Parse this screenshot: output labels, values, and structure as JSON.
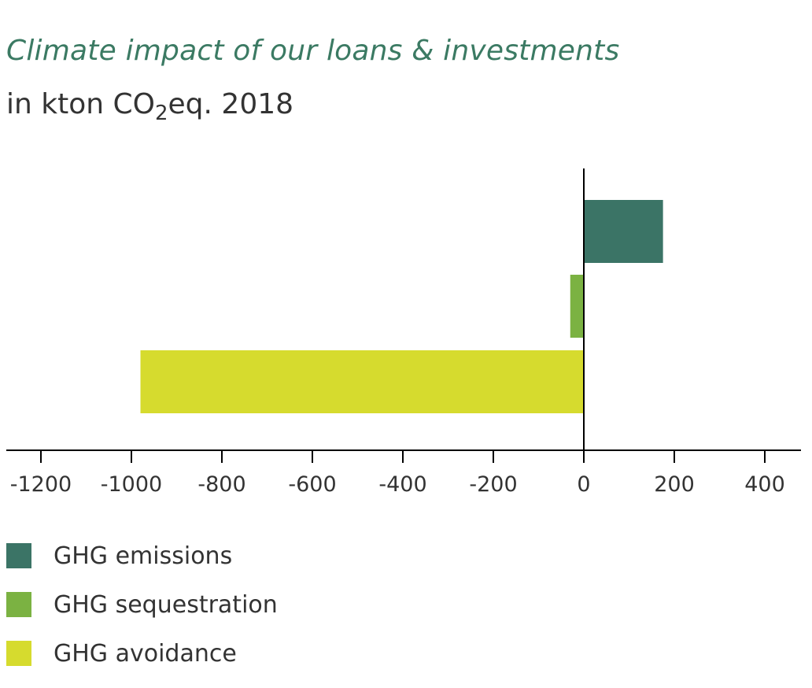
{
  "chart_data": {
    "type": "bar",
    "orientation": "horizontal",
    "title": "Climate impact of our loans & investments",
    "subtitle": {
      "prefix": "in kton CO",
      "subscript": "2",
      "suffix": "eq. 2018"
    },
    "categories": [
      "GHG emissions",
      "GHG sequestration",
      "GHG avoidance"
    ],
    "values": [
      175,
      -30,
      -980
    ],
    "colors": [
      "#3b7466",
      "#7bb242",
      "#d6db2e"
    ],
    "xlim": [
      -1200,
      400
    ],
    "ticks": [
      -1200,
      -1000,
      -800,
      -600,
      -400,
      -200,
      0,
      200,
      400
    ],
    "tick_labels": [
      "-1200",
      "-1000",
      "-800",
      "-600",
      "-400",
      "-200",
      "0",
      "200",
      "400"
    ],
    "grid": false,
    "legend_placement": "bottom-left"
  }
}
